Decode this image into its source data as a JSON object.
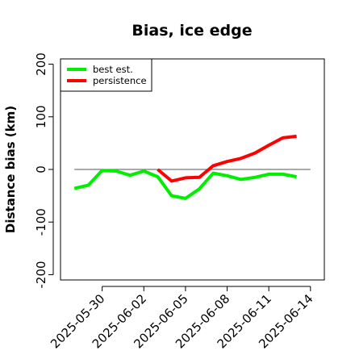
{
  "chart_data": {
    "type": "line",
    "title": "Bias, ice edge",
    "ylabel": "Distance bias (km)",
    "xlabel": "",
    "ylim": [
      -210,
      210
    ],
    "xlim": [
      "2025-05-27",
      "2025-06-15"
    ],
    "yticks": [
      -200,
      -100,
      0,
      100,
      200
    ],
    "xticks": [
      "2025-05-30",
      "2025-06-02",
      "2025-06-05",
      "2025-06-08",
      "2025-06-11",
      "2025-06-14"
    ],
    "reference_line": {
      "y": 0,
      "from": "2025-05-28",
      "to": "2025-06-14",
      "color": "#777777"
    },
    "legend_position": "top-left",
    "series": [
      {
        "name": "best est.",
        "color": "#00ee00",
        "points": [
          [
            "2025-05-28",
            -36
          ],
          [
            "2025-05-29",
            -30
          ],
          [
            "2025-05-30",
            -2
          ],
          [
            "2025-05-31",
            -3
          ],
          [
            "2025-06-01",
            -11
          ],
          [
            "2025-06-02",
            -3
          ],
          [
            "2025-06-03",
            -14
          ],
          [
            "2025-06-04",
            -50
          ],
          [
            "2025-06-05",
            -55
          ],
          [
            "2025-06-06",
            -37
          ],
          [
            "2025-06-07",
            -7
          ],
          [
            "2025-06-08",
            -12
          ],
          [
            "2025-06-09",
            -19
          ],
          [
            "2025-06-10",
            -15
          ],
          [
            "2025-06-11",
            -9
          ],
          [
            "2025-06-12",
            -9
          ],
          [
            "2025-06-13",
            -14
          ]
        ]
      },
      {
        "name": "persistence",
        "color": "#ff0000",
        "points": [
          [
            "2025-06-03",
            0
          ],
          [
            "2025-06-04",
            -22
          ],
          [
            "2025-06-05",
            -16
          ],
          [
            "2025-06-06",
            -15
          ],
          [
            "2025-06-07",
            7
          ],
          [
            "2025-06-08",
            15
          ],
          [
            "2025-06-09",
            21
          ],
          [
            "2025-06-10",
            31
          ],
          [
            "2025-06-11",
            46
          ],
          [
            "2025-06-12",
            60
          ],
          [
            "2025-06-13",
            63
          ]
        ]
      }
    ]
  }
}
